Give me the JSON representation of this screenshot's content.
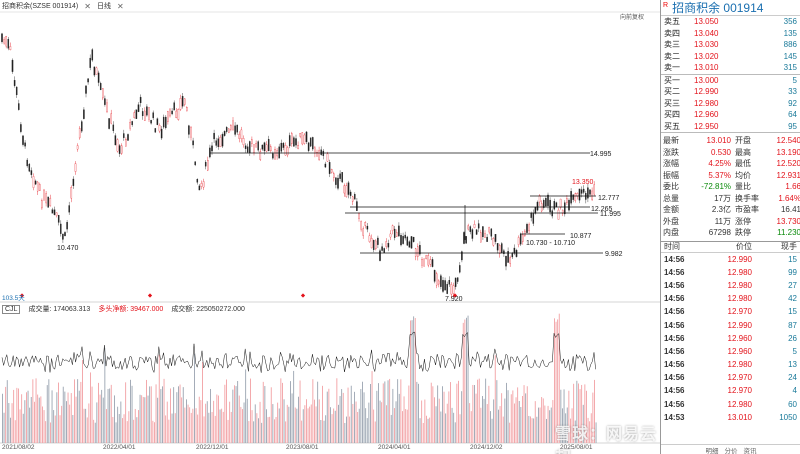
{
  "topbar": {
    "stock": "招商积余(SZSE 001914)",
    "period": "日线"
  },
  "adjust_label": "向前复权",
  "price_annotations": {
    "low_start": "10.470",
    "axis_marker": "103.5天",
    "h1": "14.995",
    "high_recent": "13.350",
    "h2": "12.777",
    "h3": "12.265",
    "h4": "11.995",
    "h5": "10.877",
    "range": "10.730 - 10.710",
    "h6": "9.982",
    "low": "7.920"
  },
  "volume_header": {
    "name": "CJL",
    "v1": "成交量: 174063.313",
    "v2": "多头净额: 39467.000",
    "v3": "成交额: 225050272.000"
  },
  "dates": [
    "2021/08/02",
    "2022/04/01",
    "2022/12/01",
    "2023/08/01",
    "2024/04/01",
    "2024/12/02",
    "2025/08/01"
  ],
  "watermark": "雪球：网易云起",
  "panel": {
    "r_mark": "R",
    "title": "招商积余  001914",
    "asks": [
      {
        "label": "卖五",
        "price": "13.050",
        "vol": "356"
      },
      {
        "label": "卖四",
        "price": "13.040",
        "vol": "135"
      },
      {
        "label": "卖三",
        "price": "13.030",
        "vol": "886"
      },
      {
        "label": "卖二",
        "price": "13.020",
        "vol": "145"
      },
      {
        "label": "卖一",
        "price": "13.010",
        "vol": "315"
      }
    ],
    "bids": [
      {
        "label": "买一",
        "price": "13.000",
        "vol": "5"
      },
      {
        "label": "买二",
        "price": "12.990",
        "vol": "33"
      },
      {
        "label": "买三",
        "price": "12.980",
        "vol": "92"
      },
      {
        "label": "买四",
        "price": "12.960",
        "vol": "64"
      },
      {
        "label": "买五",
        "price": "12.950",
        "vol": "95"
      }
    ],
    "stats": [
      {
        "k1": "最新",
        "v1": "13.010",
        "c1": "red",
        "k2": "开盘",
        "v2": "12.540",
        "c2": "red"
      },
      {
        "k1": "涨跌",
        "v1": "0.530",
        "c1": "red",
        "k2": "最高",
        "v2": "13.190",
        "c2": "red"
      },
      {
        "k1": "涨幅",
        "v1": "4.25%",
        "c1": "red",
        "k2": "最低",
        "v2": "12.520",
        "c2": "red"
      },
      {
        "k1": "振幅",
        "v1": "5.37%",
        "c1": "red",
        "k2": "均价",
        "v2": "12.931",
        "c2": "red"
      },
      {
        "k1": "委比",
        "v1": "-72.81%",
        "c1": "green",
        "k2": "量比",
        "v2": "1.66",
        "c2": "red"
      },
      {
        "k1": "总量",
        "v1": "17万",
        "c1": "",
        "k2": "换手率",
        "v2": "1.64%",
        "c2": "red"
      },
      {
        "k1": "金额",
        "v1": "2.3亿",
        "c1": "",
        "k2": "市盈率",
        "v2": "16.41",
        "c2": ""
      },
      {
        "k1": "外盘",
        "v1": "11万",
        "c1": "",
        "k2": "涨停",
        "v2": "13.730",
        "c2": "red"
      },
      {
        "k1": "内盘",
        "v1": "67298",
        "c1": "",
        "k2": "跌停",
        "v2": "11.230",
        "c2": "green"
      }
    ],
    "trades_head": {
      "time": "时间",
      "price": "价位",
      "vol": "现手"
    },
    "trades": [
      {
        "time": "14:56",
        "price": "12.990",
        "vol": "15"
      },
      {
        "time": "14:56",
        "price": "12.980",
        "vol": "99"
      },
      {
        "time": "14:56",
        "price": "12.980",
        "vol": "27"
      },
      {
        "time": "14:56",
        "price": "12.980",
        "vol": "42"
      },
      {
        "time": "14:56",
        "price": "12.970",
        "vol": "15"
      },
      {
        "time": "14:56",
        "price": "12.990",
        "vol": "87"
      },
      {
        "time": "14:56",
        "price": "12.960",
        "vol": "26"
      },
      {
        "time": "14:56",
        "price": "12.960",
        "vol": "5"
      },
      {
        "time": "14:56",
        "price": "12.980",
        "vol": "13"
      },
      {
        "time": "14:56",
        "price": "12.970",
        "vol": "24"
      },
      {
        "time": "14:56",
        "price": "12.970",
        "vol": "4"
      },
      {
        "time": "14:56",
        "price": "12.980",
        "vol": "60"
      },
      {
        "time": "14:53",
        "price": "13.010",
        "vol": "1050"
      }
    ],
    "tabs": [
      "明细",
      "分价",
      "资讯"
    ]
  },
  "colors": {
    "up": "#e3131b",
    "down": "#0a8a0a",
    "accent": "#1a6fb0"
  }
}
